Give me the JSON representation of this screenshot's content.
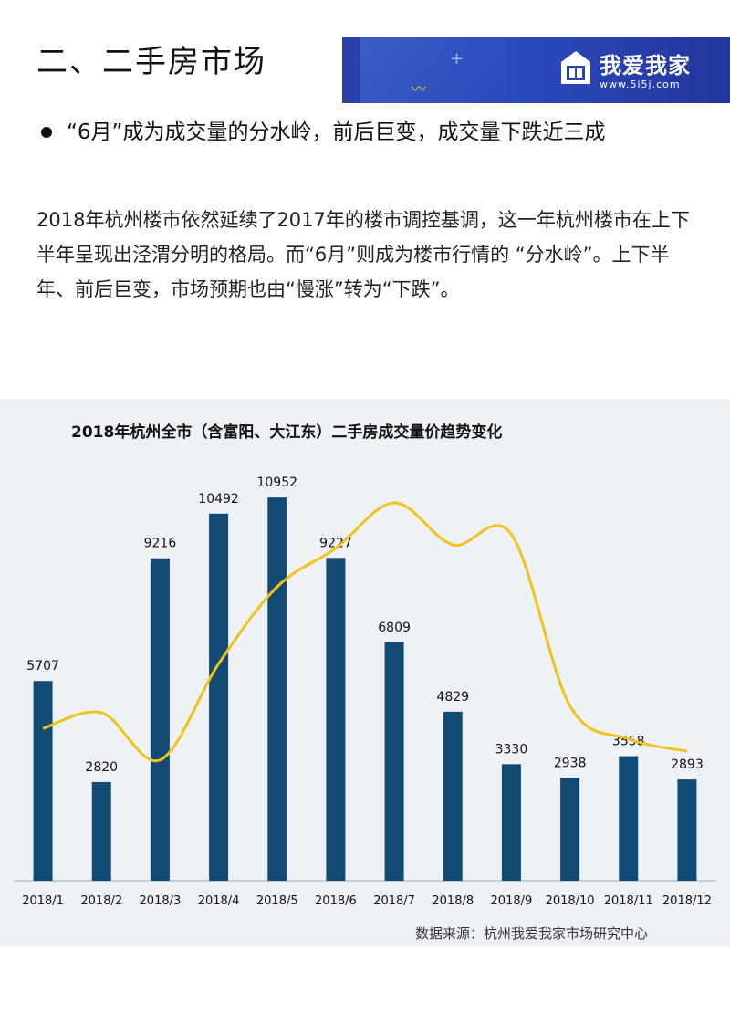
{
  "header": {
    "title": "二、二手房市场",
    "brand": "我爱我家",
    "brand_url": "www.5i5j.com"
  },
  "bullet": "“6月”成为成交量的分水岭，前后巨变，成交量下跌近三成",
  "paragraph": "2018年杭州楼市依然延续了2017年的楼市调控基调，这一年杭州楼市在上下半年呈现出泾渭分明的格局。而“6月”则成为楼市行情的 “分水岭”。上下半年、前后巨变，市场预期也由“慢涨”转为“下跌”。",
  "source": "数据来源：杭州我爱我家市场研究中心",
  "colors": {
    "bar": "#114a73",
    "line": "#f2c21a",
    "banner": "#2a43b0"
  },
  "chart_data": {
    "type": "bar",
    "title": "2018年杭州全市（含富阳、大江东）二手房成交量价趋势变化",
    "categories": [
      "2018/1",
      "2018/2",
      "2018/3",
      "2018/4",
      "2018/5",
      "2018/6",
      "2018/7",
      "2018/8",
      "2018/9",
      "2018/10",
      "2018/11",
      "2018/12"
    ],
    "values": [
      5707,
      2820,
      9216,
      10492,
      10952,
      9227,
      6809,
      4829,
      3330,
      2938,
      3558,
      2893
    ],
    "ylim": [
      0,
      12000
    ],
    "line_series": {
      "type": "line",
      "smooth": true,
      "values": [
        4350,
        4800,
        3450,
        6200,
        8400,
        9500,
        10800,
        9600,
        9900,
        5000,
        4050,
        3700
      ]
    },
    "grid": false,
    "legend": "none"
  }
}
